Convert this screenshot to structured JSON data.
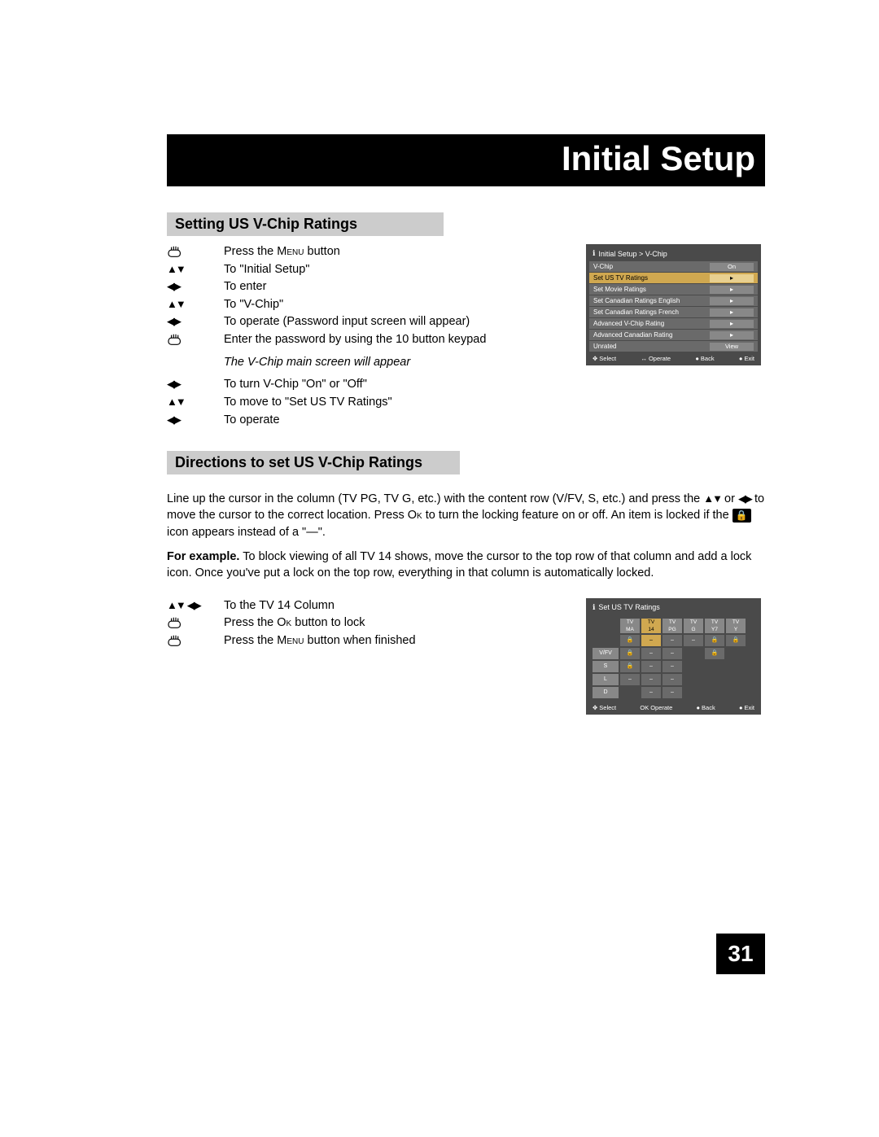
{
  "page": {
    "title": "Initial Setup",
    "number": "31"
  },
  "section1": {
    "heading": "Setting US V-Chip Ratings",
    "steps": [
      {
        "icon": "hand",
        "text_prefix": "Press the ",
        "smallcaps": "Menu",
        "text_suffix": " button"
      },
      {
        "icon": "updown",
        "text": "To \"Initial Setup\""
      },
      {
        "icon": "leftright",
        "text": "To enter"
      },
      {
        "icon": "updown",
        "text": "To \"V-Chip\""
      },
      {
        "icon": "leftright",
        "text": "To operate (Password input screen will appear)"
      },
      {
        "icon": "hand",
        "text": "Enter the password by using the 10 button keypad"
      }
    ],
    "note": "The V-Chip main screen will appear",
    "steps2": [
      {
        "icon": "leftright",
        "text": "To turn V-Chip \"On\" or \"Off\""
      },
      {
        "icon": "updown",
        "text": "To move to \"Set US TV Ratings\""
      },
      {
        "icon": "leftright",
        "text": "To operate"
      }
    ]
  },
  "osd1": {
    "breadcrumb": "Initial Setup > V-Chip",
    "rows": [
      {
        "label": "V-Chip",
        "value": "On",
        "selected": false
      },
      {
        "label": "Set US TV Ratings",
        "value": "",
        "selected": true,
        "chev": "▸"
      },
      {
        "label": "Set Movie Ratings",
        "value": "",
        "chev": "▸"
      },
      {
        "label": "Set Canadian Ratings English",
        "value": "",
        "chev": "▸"
      },
      {
        "label": "Set Canadian Ratings French",
        "value": "",
        "chev": "▸"
      },
      {
        "label": "Advanced V-Chip Rating",
        "value": "",
        "chev": "▸"
      },
      {
        "label": "Advanced Canadian Rating",
        "value": "",
        "chev": "▸"
      },
      {
        "label": "Unrated",
        "value": "View",
        "selected": false
      }
    ],
    "footer": {
      "select": "Select",
      "operate": "Operate",
      "back": "Back",
      "exit": "Exit"
    }
  },
  "section2": {
    "heading": "Directions to set US V-Chip Ratings",
    "para1_a": "Line up the cursor in the column (TV PG, TV G, etc.) with the content row (V/FV, S, etc.) and press the ",
    "para1_b": " or ",
    "para1_c": " to move the cursor to the correct location. Press ",
    "para1_ok": "Ok",
    "para1_d": " to turn the locking feature on or off. An item is locked if the ",
    "para1_e": " icon appears instead of a \"—\".",
    "para2_a": "For example.",
    "para2_b": " To block viewing of all TV 14 shows, move the cursor to the top row of that column and add a lock icon. Once you've put a lock on the top row, everything in that column is automatically locked.",
    "steps": [
      {
        "icon": "all4",
        "text": "To the TV 14 Column"
      },
      {
        "icon": "hand",
        "text_prefix": "Press the ",
        "smallcaps": "Ok",
        "text_suffix": " button to lock"
      },
      {
        "icon": "hand",
        "text_prefix": "Press the ",
        "smallcaps": "Menu",
        "text_suffix": " button when finished"
      }
    ]
  },
  "osd2": {
    "title": "Set US TV Ratings",
    "cols": [
      "TV\nMA",
      "TV\n14",
      "TV\nPG",
      "TV\nG",
      "TV\nY7",
      "TV\nY"
    ],
    "toprow": [
      "🔒",
      "–",
      "–",
      "–",
      "🔒",
      "🔒"
    ],
    "rows": [
      {
        "label": "V/FV",
        "cells": [
          "🔒",
          "–",
          "–",
          "",
          "🔒",
          ""
        ]
      },
      {
        "label": "S",
        "cells": [
          "🔒",
          "–",
          "–",
          "",
          "",
          ""
        ]
      },
      {
        "label": "L",
        "cells": [
          "–",
          "–",
          "–",
          "",
          "",
          ""
        ]
      },
      {
        "label": "D",
        "cells": [
          "",
          "–",
          "–",
          "",
          "",
          ""
        ]
      }
    ],
    "selected_col": 1,
    "footer": {
      "select": "Select",
      "operate": "Operate",
      "back": "Back",
      "exit": "Exit"
    }
  }
}
